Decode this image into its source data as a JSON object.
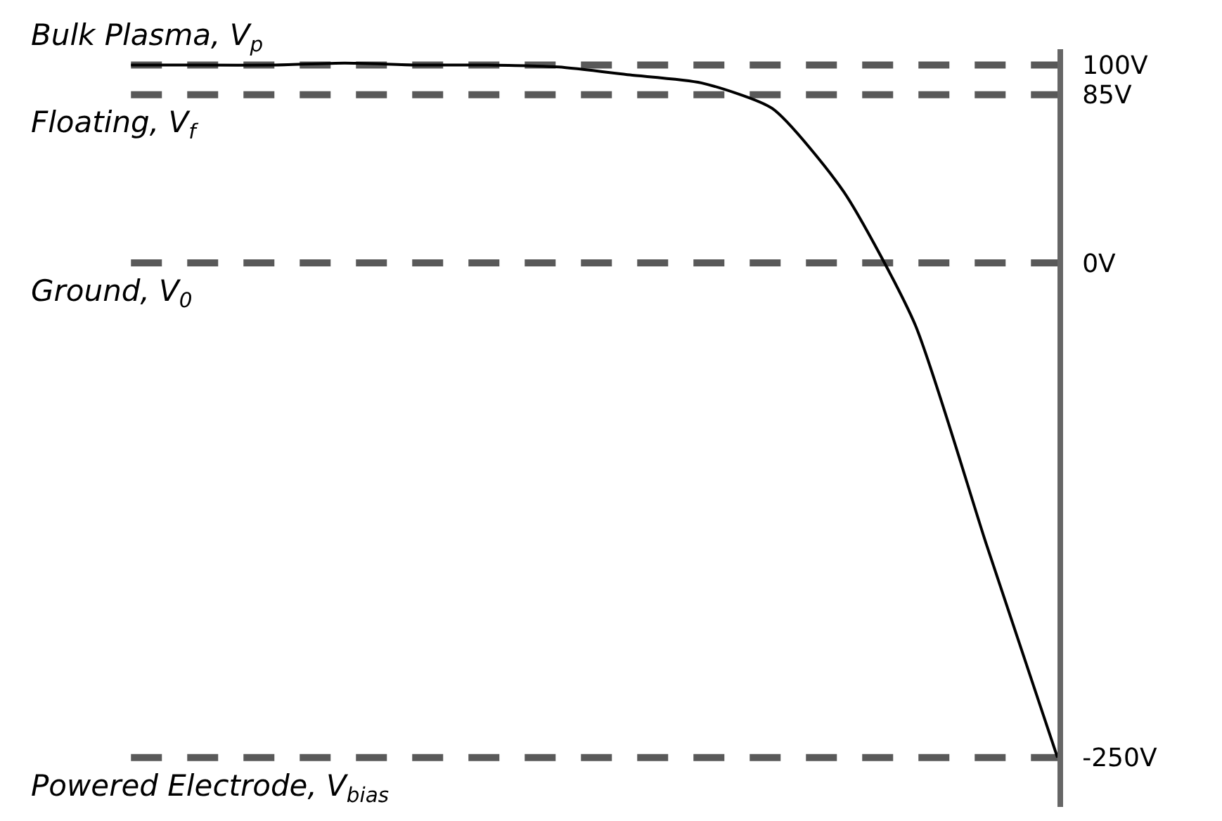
{
  "chart_data": {
    "type": "line",
    "tick_labels": "y",
    "categories": [
      null,
      null,
      null,
      null,
      null,
      null,
      null,
      null,
      null,
      null,
      null,
      null,
      null,
      null
    ],
    "series": [
      {
        "color": "#000000",
        "values": [
          100,
          100,
          100,
          101,
          100,
          100,
          99,
          95,
          91,
          78,
          36,
          -31,
          -142,
          -250
        ]
      }
    ],
    "ylim": [
      -275,
      108
    ],
    "yticks": [
      {
        "value": 100,
        "label": "100V"
      },
      {
        "value": 85,
        "label": "85V"
      },
      {
        "value": 0,
        "label": "0V"
      },
      {
        "value": -250,
        "label": "-250V"
      }
    ],
    "ref_lines": [
      {
        "axis": "y",
        "value": 100,
        "label": "Bulk Plasma, V$_{p}$",
        "color": "#595959",
        "line_style": "dashed"
      },
      {
        "axis": "y",
        "value": 85,
        "label": "Floating, V$_{f}$",
        "color": "#595959",
        "line_style": "dashed"
      },
      {
        "axis": "y",
        "value": 0,
        "label": "Ground, V$_{0}$",
        "color": "#595959",
        "line_style": "dashed"
      },
      {
        "axis": "y",
        "value": -250,
        "label": "Powered Electrode, V$_{bias}$",
        "color": "#595959",
        "line_style": "dashed"
      }
    ]
  }
}
